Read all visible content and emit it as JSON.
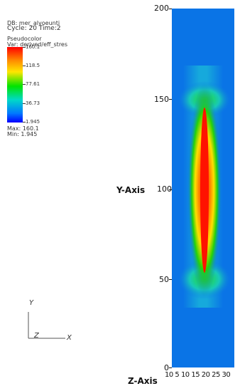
{
  "info": {
    "db_line": "DB: mer_alyoeunti",
    "cycle_line": "Cycle: 20     Time:2",
    "plot_type": "Pseudocolor",
    "var_line": "Var: derived/eff_stres"
  },
  "legend": {
    "ticks": [
      "160.1",
      "118.5",
      "77.61",
      "36.73",
      "1.945"
    ],
    "max_line": "Max: 160.1",
    "min_line": "Min: 1.945"
  },
  "axes": {
    "y_title": "Y-Axis",
    "z_title": "Z-Axis",
    "y_ticks": [
      "200",
      "150",
      "100",
      "50",
      "0"
    ],
    "x_ticks_text": "10 5 10 15 20 25 30"
  },
  "triad": {
    "y": "Y",
    "z": "Z",
    "x": "X"
  },
  "colors": {
    "background": "#0a74e6"
  }
}
